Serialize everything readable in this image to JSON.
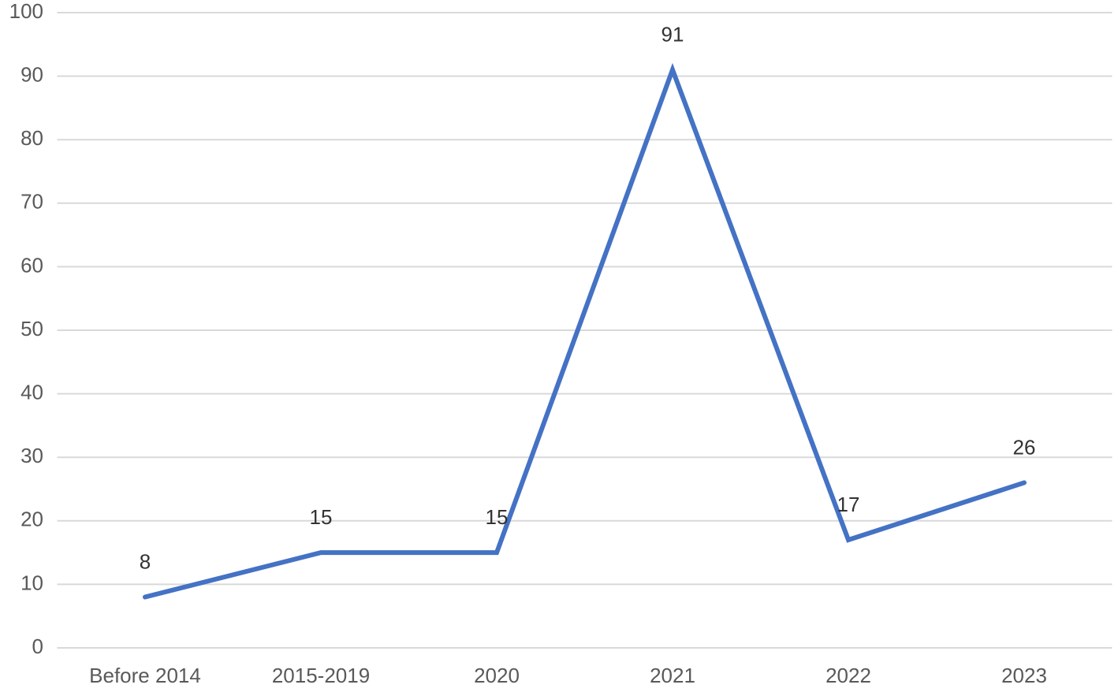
{
  "chart_data": {
    "type": "line",
    "categories": [
      "Before 2014",
      "2015-2019",
      "2020",
      "2021",
      "2022",
      "2023"
    ],
    "values": [
      8,
      15,
      15,
      91,
      17,
      26
    ],
    "color": "#4472c4",
    "ylim": [
      0,
      100
    ],
    "yticks": [
      0,
      10,
      20,
      30,
      40,
      50,
      60,
      70,
      80,
      90,
      100
    ],
    "grid": true
  }
}
